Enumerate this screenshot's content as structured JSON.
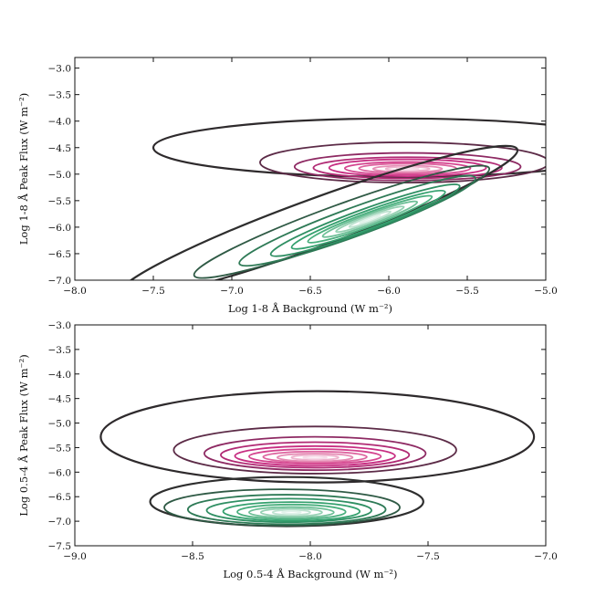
{
  "chart_data": [
    {
      "type": "contour",
      "xlabel": "Log 1-8 Å Background (W m⁻²)",
      "ylabel": "Log 1-8 Å Peak Flux (W m⁻²)",
      "xlim": [
        -8.0,
        -5.0
      ],
      "ylim": [
        -7.0,
        -2.8
      ],
      "xticks": [
        -8.0,
        -7.5,
        -7.0,
        -6.5,
        -6.0,
        -5.5,
        -5.0
      ],
      "xtick_labels": [
        "−8.0",
        "−7.5",
        "−7.0",
        "−6.5",
        "−6.0",
        "−5.5",
        "−5.0"
      ],
      "yticks": [
        -3.0,
        -3.5,
        -4.0,
        -4.5,
        -5.0,
        -5.5,
        -6.0,
        -6.5,
        -7.0
      ],
      "ytick_labels": [
        "−3.0",
        "−3.5",
        "−4.0",
        "−4.5",
        "−5.0",
        "−5.5",
        "−6.0",
        "−6.5",
        "−7.0"
      ],
      "series": [
        {
          "color_scheme": "magenta-purple",
          "colors": [
            "#2e2a2c",
            "#5c2b47",
            "#8e2a63",
            "#b12a74",
            "#c72e82",
            "#d4448f",
            "#dd649f",
            "#e58bb4",
            "#eeb4ce",
            "#f6dbe8"
          ],
          "center": [
            -5.88,
            -4.9
          ],
          "levels": [
            {
              "cx": -5.95,
              "cy": -4.5,
              "rx": 1.55,
              "ry": 0.55
            },
            {
              "cx": -5.9,
              "cy": -4.78,
              "rx": 0.92,
              "ry": 0.38
            },
            {
              "cx": -5.88,
              "cy": -4.86,
              "rx": 0.72,
              "ry": 0.26
            },
            {
              "cx": -5.88,
              "cy": -4.88,
              "rx": 0.6,
              "ry": 0.2
            },
            {
              "cx": -5.88,
              "cy": -4.88,
              "rx": 0.5,
              "ry": 0.16
            },
            {
              "cx": -5.88,
              "cy": -4.89,
              "rx": 0.4,
              "ry": 0.12
            },
            {
              "cx": -5.88,
              "cy": -4.89,
              "rx": 0.31,
              "ry": 0.09
            },
            {
              "cx": -5.88,
              "cy": -4.9,
              "rx": 0.22,
              "ry": 0.06
            },
            {
              "cx": -5.88,
              "cy": -4.9,
              "rx": 0.14,
              "ry": 0.04
            },
            {
              "cx": -5.88,
              "cy": -4.9,
              "rx": 0.07,
              "ry": 0.02
            }
          ]
        },
        {
          "color_scheme": "green",
          "colors": [
            "#2e2e2e",
            "#2f5a45",
            "#2e7a56",
            "#2f8f63",
            "#34a06e",
            "#4aaf7e",
            "#6ebf97",
            "#96d1b3",
            "#bfe3d1",
            "#e1f2ea"
          ],
          "center": [
            -6.12,
            -5.85
          ],
          "tilt_deg": -20,
          "levels": [
            {
              "cx": -6.45,
              "cy": -5.9,
              "rx": 1.35,
              "ry": 0.45
            },
            {
              "cx": -6.3,
              "cy": -5.9,
              "rx": 1.0,
              "ry": 0.33
            },
            {
              "cx": -6.2,
              "cy": -5.88,
              "rx": 0.8,
              "ry": 0.27
            },
            {
              "cx": -6.15,
              "cy": -5.87,
              "rx": 0.64,
              "ry": 0.21
            },
            {
              "cx": -6.13,
              "cy": -5.86,
              "rx": 0.52,
              "ry": 0.17
            },
            {
              "cx": -6.12,
              "cy": -5.85,
              "rx": 0.42,
              "ry": 0.13
            },
            {
              "cx": -6.12,
              "cy": -5.85,
              "rx": 0.32,
              "ry": 0.1
            },
            {
              "cx": -6.12,
              "cy": -5.85,
              "rx": 0.23,
              "ry": 0.07
            },
            {
              "cx": -6.12,
              "cy": -5.85,
              "rx": 0.14,
              "ry": 0.045
            },
            {
              "cx": -6.12,
              "cy": -5.85,
              "rx": 0.07,
              "ry": 0.02
            }
          ]
        }
      ]
    },
    {
      "type": "contour",
      "xlabel": "Log 0.5-4 Å Background (W m⁻²)",
      "ylabel": "Log 0.5-4 Å Peak Flux (W m⁻²)",
      "xlim": [
        -9.0,
        -7.0
      ],
      "ylim": [
        -7.5,
        -3.0
      ],
      "xticks": [
        -9.0,
        -8.5,
        -8.0,
        -7.5,
        -7.0
      ],
      "xtick_labels": [
        "−9.0",
        "−8.5",
        "−8.0",
        "−7.5",
        "−7.0"
      ],
      "yticks": [
        -3.0,
        -3.5,
        -4.0,
        -4.5,
        -5.0,
        -5.5,
        -6.0,
        -6.5,
        -7.0,
        -7.5
      ],
      "ytick_labels": [
        "−3.0",
        "−3.5",
        "−4.0",
        "−4.5",
        "−5.0",
        "−5.5",
        "−6.0",
        "−6.5",
        "−7.0",
        "−7.5"
      ],
      "series": [
        {
          "color_scheme": "magenta-purple",
          "colors": [
            "#2e2a2c",
            "#5c2b47",
            "#8e2a63",
            "#b12a74",
            "#c72e82",
            "#d4448f",
            "#dd649f",
            "#e58bb4",
            "#eeb4ce",
            "#f6dbe8"
          ],
          "center": [
            -7.98,
            -5.7
          ],
          "levels": [
            {
              "cx": -7.97,
              "cy": -5.28,
              "rx": 0.92,
              "ry": 0.93
            },
            {
              "cx": -7.98,
              "cy": -5.55,
              "rx": 0.6,
              "ry": 0.48
            },
            {
              "cx": -7.98,
              "cy": -5.62,
              "rx": 0.47,
              "ry": 0.34
            },
            {
              "cx": -7.98,
              "cy": -5.65,
              "rx": 0.4,
              "ry": 0.26
            },
            {
              "cx": -7.98,
              "cy": -5.67,
              "rx": 0.34,
              "ry": 0.2
            },
            {
              "cx": -7.98,
              "cy": -5.68,
              "rx": 0.28,
              "ry": 0.15
            },
            {
              "cx": -7.98,
              "cy": -5.69,
              "rx": 0.22,
              "ry": 0.11
            },
            {
              "cx": -7.98,
              "cy": -5.7,
              "rx": 0.16,
              "ry": 0.08
            },
            {
              "cx": -7.98,
              "cy": -5.7,
              "rx": 0.1,
              "ry": 0.05
            },
            {
              "cx": -7.98,
              "cy": -5.7,
              "rx": 0.05,
              "ry": 0.025
            }
          ]
        },
        {
          "color_scheme": "green",
          "colors": [
            "#2e2e2e",
            "#2f5a45",
            "#2e7a56",
            "#2f8f63",
            "#34a06e",
            "#4aaf7e",
            "#6ebf97",
            "#96d1b3",
            "#bfe3d1",
            "#e1f2ea"
          ],
          "center": [
            -8.08,
            -6.82
          ],
          "levels": [
            {
              "cx": -8.1,
              "cy": -6.6,
              "rx": 0.58,
              "ry": 0.5
            },
            {
              "cx": -8.12,
              "cy": -6.72,
              "rx": 0.5,
              "ry": 0.37
            },
            {
              "cx": -8.1,
              "cy": -6.76,
              "rx": 0.42,
              "ry": 0.3
            },
            {
              "cx": -8.09,
              "cy": -6.78,
              "rx": 0.35,
              "ry": 0.24
            },
            {
              "cx": -8.08,
              "cy": -6.8,
              "rx": 0.29,
              "ry": 0.19
            },
            {
              "cx": -8.08,
              "cy": -6.81,
              "rx": 0.23,
              "ry": 0.15
            },
            {
              "cx": -8.08,
              "cy": -6.82,
              "rx": 0.18,
              "ry": 0.11
            },
            {
              "cx": -8.08,
              "cy": -6.82,
              "rx": 0.13,
              "ry": 0.08
            },
            {
              "cx": -8.08,
              "cy": -6.82,
              "rx": 0.08,
              "ry": 0.05
            },
            {
              "cx": -8.08,
              "cy": -6.82,
              "rx": 0.04,
              "ry": 0.025
            }
          ]
        }
      ]
    }
  ]
}
